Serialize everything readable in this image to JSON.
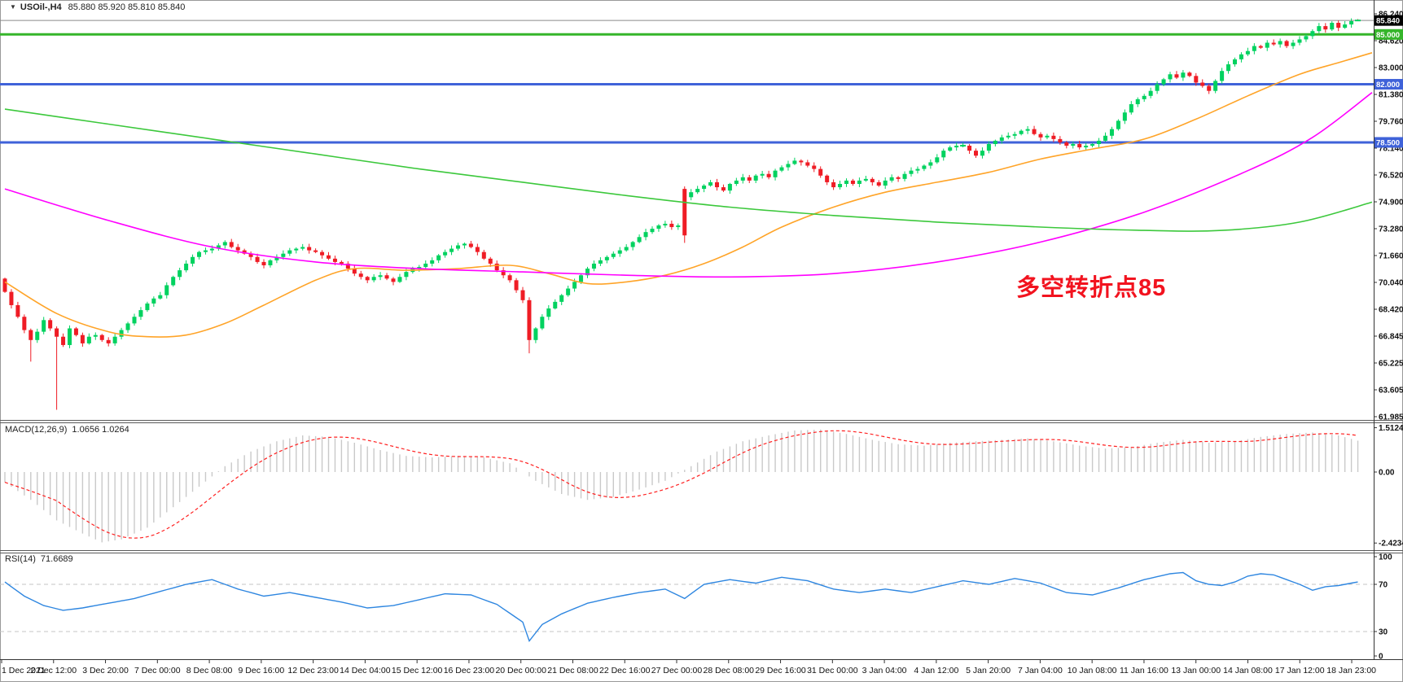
{
  "window": {
    "symbol_period": "USOil-,H4",
    "ohlc_text": "85.880 85.920 85.810 85.840"
  },
  "annotation": {
    "text": "多空转折点85",
    "color": "#f2131f"
  },
  "chart_data": {
    "type": "candlestick",
    "symbol": "USOil",
    "timeframe": "H4",
    "title": "USOil-,H4 85.880 85.920 85.810 85.840",
    "current_bar": {
      "open": 85.88,
      "high": 85.92,
      "low": 85.81,
      "close": 85.84
    },
    "candle_colors": {
      "up": "#00d25f",
      "down": "#ef1c25"
    },
    "price_axis_ticks": [
      "86.240",
      "84.620",
      "83.000",
      "81.380",
      "79.760",
      "78.140",
      "76.520",
      "74.900",
      "73.280",
      "71.660",
      "70.040",
      "68.420",
      "66.845",
      "65.225",
      "63.605",
      "61.985"
    ],
    "price_axis_range": {
      "top_price": 86.24,
      "bottom_price": 61.985
    },
    "levels": [
      {
        "price": 85.84,
        "label": "85.840",
        "kind": "current-price-line",
        "color": "#8a8a8a",
        "badge_bg": "#000000",
        "width": 1
      },
      {
        "price": 85.0,
        "label": "85.000",
        "kind": "horizontal-level",
        "color": "#35b52a",
        "badge_bg": "#35b52a",
        "width": 3
      },
      {
        "price": 82.0,
        "label": "82.000",
        "kind": "horizontal-level",
        "color": "#3f62d9",
        "badge_bg": "#3f62d9",
        "width": 3
      },
      {
        "price": 78.5,
        "label": "78.500",
        "kind": "horizontal-level",
        "color": "#3f62d9",
        "badge_bg": "#3f62d9",
        "width": 3
      }
    ],
    "time_axis": [
      "1 Dec 2021",
      "2 Dec 12:00",
      "3 Dec 20:00",
      "7 Dec 00:00",
      "8 Dec 08:00",
      "9 Dec 16:00",
      "12 Dec 23:00",
      "14 Dec 04:00",
      "15 Dec 12:00",
      "16 Dec 23:00",
      "20 Dec 00:00",
      "21 Dec 08:00",
      "22 Dec 16:00",
      "27 Dec 00:00",
      "28 Dec 08:00",
      "29 Dec 16:00",
      "31 Dec 00:00",
      "3 Jan 04:00",
      "4 Jan 12:00",
      "5 Jan 20:00",
      "7 Jan 04:00",
      "10 Jan 08:00",
      "11 Jan 16:00",
      "13 Jan 00:00",
      "14 Jan 08:00",
      "17 Jan 12:00",
      "18 Jan 23:00"
    ],
    "candles": {
      "closes": [
        69.5,
        68.7,
        68.0,
        67.2,
        66.6,
        67.1,
        67.8,
        67.3,
        66.8,
        66.3,
        67.3,
        66.9,
        66.4,
        66.8,
        66.9,
        66.6,
        66.4,
        66.8,
        67.2,
        67.6,
        68.0,
        68.4,
        68.8,
        69.1,
        69.3,
        69.9,
        70.4,
        70.8,
        71.2,
        71.6,
        71.9,
        72.0,
        72.1,
        72.3,
        72.5,
        72.2,
        72.0,
        71.8,
        71.6,
        71.3,
        71.1,
        71.4,
        71.6,
        71.8,
        72.0,
        72.1,
        72.2,
        72.0,
        71.9,
        71.7,
        71.5,
        71.3,
        71.2,
        70.9,
        70.6,
        70.4,
        70.2,
        70.4,
        70.5,
        70.3,
        70.1,
        70.4,
        70.7,
        70.9,
        71.0,
        71.2,
        71.4,
        71.7,
        71.9,
        72.1,
        72.3,
        72.4,
        72.2,
        71.9,
        71.5,
        71.2,
        70.8,
        70.5,
        70.2,
        69.6,
        69.0,
        66.6,
        67.3,
        68.0,
        68.5,
        68.9,
        69.3,
        69.7,
        70.1,
        70.5,
        70.9,
        71.2,
        71.4,
        71.6,
        71.8,
        72.0,
        72.2,
        72.5,
        72.8,
        73.1,
        73.3,
        73.5,
        73.6,
        73.4,
        73.5,
        72.9,
        75.5,
        75.7,
        75.9,
        76.1,
        75.8,
        75.6,
        76.0,
        76.2,
        76.4,
        76.2,
        76.5,
        76.6,
        76.4,
        76.8,
        77.0,
        77.2,
        77.4,
        77.3,
        77.1,
        76.9,
        76.5,
        76.1,
        75.8,
        76.0,
        76.2,
        76.0,
        76.2,
        76.3,
        76.1,
        75.9,
        76.2,
        76.4,
        76.3,
        76.6,
        76.8,
        76.9,
        77.1,
        77.3,
        77.6,
        78.0,
        78.2,
        78.3,
        78.3,
        78.0,
        77.7,
        78.0,
        78.4,
        78.6,
        78.8,
        78.9,
        79.0,
        79.2,
        79.3,
        79.0,
        78.8,
        78.9,
        78.7,
        78.5,
        78.3,
        78.4,
        78.2,
        78.3,
        78.4,
        78.6,
        78.9,
        79.3,
        79.8,
        80.3,
        80.8,
        81.1,
        81.3,
        81.6,
        82.0,
        82.3,
        82.6,
        82.4,
        82.7,
        82.5,
        82.1,
        81.9,
        81.6,
        82.2,
        82.8,
        83.2,
        83.5,
        83.8,
        84.0,
        84.3,
        84.2,
        84.5,
        84.4,
        84.6,
        84.3,
        84.5,
        84.7,
        84.9,
        85.2,
        85.5,
        85.3,
        85.7,
        85.4,
        85.6,
        85.8,
        85.84
      ],
      "specials": {
        "4": {
          "low": 65.3
        },
        "8": {
          "low": 62.4
        },
        "81": {
          "low": 65.8
        },
        "105": {
          "open": 75.7,
          "high": 75.85,
          "low": 72.45
        },
        "106": {
          "open": 75.2
        },
        "209": {
          "open": 85.88,
          "high": 85.92,
          "low": 85.81
        }
      }
    },
    "moving_averages": [
      {
        "name": "fast-ma",
        "color": "#ffa428",
        "points": [
          [
            0,
            70.1
          ],
          [
            8,
            68.2
          ],
          [
            16,
            67.1
          ],
          [
            22,
            66.8
          ],
          [
            28,
            66.9
          ],
          [
            34,
            67.6
          ],
          [
            40,
            68.7
          ],
          [
            48,
            70.2
          ],
          [
            54,
            70.9
          ],
          [
            62,
            70.8
          ],
          [
            70,
            70.9
          ],
          [
            78,
            71.1
          ],
          [
            84,
            70.6
          ],
          [
            90,
            70.0
          ],
          [
            96,
            70.1
          ],
          [
            102,
            70.5
          ],
          [
            108,
            71.2
          ],
          [
            114,
            72.2
          ],
          [
            120,
            73.4
          ],
          [
            128,
            74.6
          ],
          [
            136,
            75.5
          ],
          [
            144,
            76.1
          ],
          [
            152,
            76.7
          ],
          [
            160,
            77.5
          ],
          [
            168,
            78.1
          ],
          [
            176,
            78.7
          ],
          [
            184,
            79.9
          ],
          [
            192,
            81.3
          ],
          [
            200,
            82.6
          ],
          [
            206,
            83.3
          ],
          [
            212,
            83.9
          ]
        ]
      },
      {
        "name": "mid-ma",
        "color": "#ff00ff",
        "points": [
          [
            0,
            75.7
          ],
          [
            16,
            73.8
          ],
          [
            32,
            72.2
          ],
          [
            48,
            71.3
          ],
          [
            64,
            70.9
          ],
          [
            80,
            70.7
          ],
          [
            96,
            70.5
          ],
          [
            112,
            70.4
          ],
          [
            128,
            70.6
          ],
          [
            144,
            71.3
          ],
          [
            160,
            72.5
          ],
          [
            176,
            74.3
          ],
          [
            192,
            76.8
          ],
          [
            202,
            78.8
          ],
          [
            212,
            81.5
          ]
        ]
      },
      {
        "name": "slow-ma",
        "color": "#3cc83c",
        "points": [
          [
            0,
            80.5
          ],
          [
            16,
            79.6
          ],
          [
            32,
            78.7
          ],
          [
            48,
            77.8
          ],
          [
            64,
            76.9
          ],
          [
            80,
            76.1
          ],
          [
            96,
            75.3
          ],
          [
            112,
            74.6
          ],
          [
            128,
            74.1
          ],
          [
            144,
            73.7
          ],
          [
            160,
            73.4
          ],
          [
            176,
            73.2
          ],
          [
            188,
            73.2
          ],
          [
            200,
            73.7
          ],
          [
            212,
            74.9
          ]
        ]
      }
    ],
    "macd": {
      "label": "MACD(12,26,9)",
      "values_text": "1.0656 1.0264",
      "main_value": 1.0656,
      "signal_value": 1.0264,
      "axis": [
        "1.5124",
        "0.00",
        "-2.4234"
      ],
      "histogram_color": "#c9c9c9",
      "signal_color": "#ff2020",
      "anchors": [
        [
          0,
          -0.35
        ],
        [
          4,
          -0.95
        ],
        [
          8,
          -1.65
        ],
        [
          12,
          -2.1
        ],
        [
          15,
          -2.4
        ],
        [
          18,
          -2.3
        ],
        [
          22,
          -1.9
        ],
        [
          26,
          -1.2
        ],
        [
          30,
          -0.5
        ],
        [
          34,
          0.2
        ],
        [
          38,
          0.7
        ],
        [
          42,
          1.05
        ],
        [
          46,
          1.25
        ],
        [
          50,
          1.2
        ],
        [
          54,
          1.0
        ],
        [
          58,
          0.75
        ],
        [
          62,
          0.55
        ],
        [
          66,
          0.5
        ],
        [
          70,
          0.55
        ],
        [
          74,
          0.5
        ],
        [
          78,
          0.3
        ],
        [
          82,
          -0.3
        ],
        [
          86,
          -0.75
        ],
        [
          90,
          -0.95
        ],
        [
          94,
          -0.85
        ],
        [
          98,
          -0.6
        ],
        [
          102,
          -0.3
        ],
        [
          106,
          0.2
        ],
        [
          110,
          0.7
        ],
        [
          114,
          1.05
        ],
        [
          118,
          1.25
        ],
        [
          122,
          1.42
        ],
        [
          126,
          1.45
        ],
        [
          130,
          1.3
        ],
        [
          134,
          1.1
        ],
        [
          138,
          0.95
        ],
        [
          142,
          0.9
        ],
        [
          146,
          1.0
        ],
        [
          150,
          1.05
        ],
        [
          154,
          1.1
        ],
        [
          158,
          1.15
        ],
        [
          162,
          1.05
        ],
        [
          166,
          0.9
        ],
        [
          170,
          0.8
        ],
        [
          174,
          0.85
        ],
        [
          178,
          1.0
        ],
        [
          182,
          1.1
        ],
        [
          186,
          1.0
        ],
        [
          190,
          1.05
        ],
        [
          194,
          1.2
        ],
        [
          198,
          1.3
        ],
        [
          202,
          1.35
        ],
        [
          206,
          1.25
        ],
        [
          209,
          1.07
        ]
      ]
    },
    "rsi": {
      "label": "RSI(14)",
      "value_text": "71.6689",
      "value": 71.6689,
      "axis": [
        "100",
        "70",
        "30",
        "0"
      ],
      "line_color": "#2e86e0",
      "level_lines": [
        70,
        30
      ],
      "anchors": [
        [
          0,
          72
        ],
        [
          3,
          60
        ],
        [
          6,
          52
        ],
        [
          9,
          48
        ],
        [
          12,
          50
        ],
        [
          16,
          54
        ],
        [
          20,
          58
        ],
        [
          24,
          64
        ],
        [
          28,
          70
        ],
        [
          32,
          74
        ],
        [
          36,
          66
        ],
        [
          40,
          60
        ],
        [
          44,
          63
        ],
        [
          48,
          59
        ],
        [
          52,
          55
        ],
        [
          56,
          50
        ],
        [
          60,
          52
        ],
        [
          64,
          57
        ],
        [
          68,
          62
        ],
        [
          72,
          61
        ],
        [
          76,
          53
        ],
        [
          80,
          38
        ],
        [
          81,
          22
        ],
        [
          83,
          36
        ],
        [
          86,
          45
        ],
        [
          90,
          54
        ],
        [
          94,
          59
        ],
        [
          98,
          63
        ],
        [
          102,
          66
        ],
        [
          105,
          58
        ],
        [
          108,
          70
        ],
        [
          112,
          74
        ],
        [
          116,
          71
        ],
        [
          120,
          76
        ],
        [
          124,
          73
        ],
        [
          128,
          66
        ],
        [
          132,
          63
        ],
        [
          136,
          66
        ],
        [
          140,
          63
        ],
        [
          144,
          68
        ],
        [
          148,
          73
        ],
        [
          152,
          70
        ],
        [
          156,
          75
        ],
        [
          160,
          71
        ],
        [
          164,
          63
        ],
        [
          168,
          61
        ],
        [
          172,
          67
        ],
        [
          176,
          74
        ],
        [
          180,
          79
        ],
        [
          182,
          80
        ],
        [
          184,
          73
        ],
        [
          186,
          70
        ],
        [
          188,
          69
        ],
        [
          190,
          72
        ],
        [
          192,
          77
        ],
        [
          194,
          79
        ],
        [
          196,
          78
        ],
        [
          198,
          74
        ],
        [
          200,
          70
        ],
        [
          202,
          65
        ],
        [
          204,
          68
        ],
        [
          206,
          69
        ],
        [
          209,
          72
        ]
      ]
    }
  }
}
